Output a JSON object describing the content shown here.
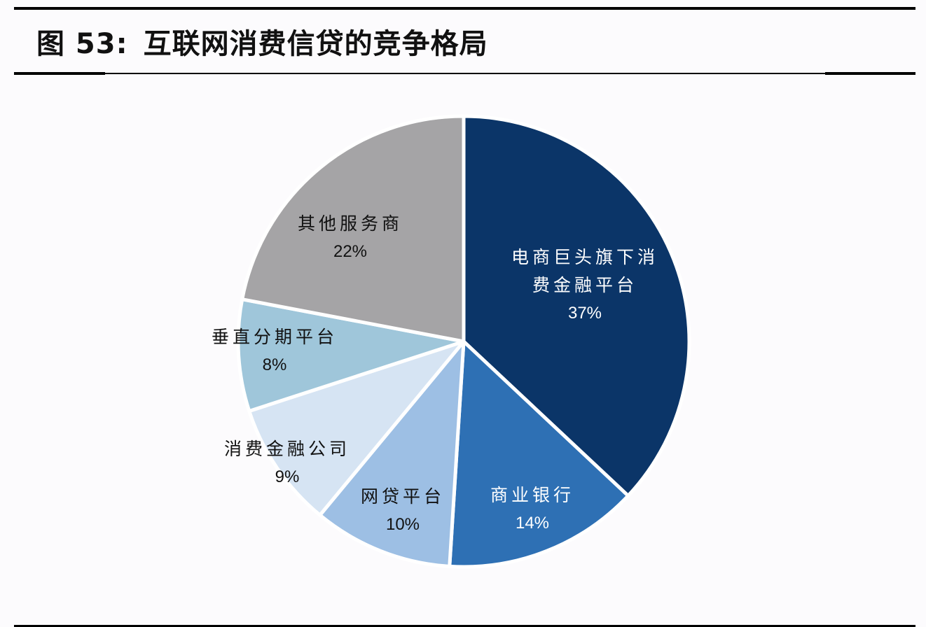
{
  "figure": {
    "number_label": "图 53:",
    "title": "互联网消费信贷的竞争格局"
  },
  "chart_data": {
    "type": "pie",
    "title": "互联网消费信贷的竞争格局",
    "start_angle": "12 o'clock, clockwise",
    "labels_inside_slices": true,
    "legend": "none",
    "slices": [
      {
        "label": "电商巨头旗下消费金融平台",
        "label_lines": [
          "电商巨头旗下消",
          "费金融平台"
        ],
        "value": 37,
        "value_label": "37%",
        "color": "#0b3568",
        "text_color": "#ffffff"
      },
      {
        "label": "商业银行",
        "label_lines": [
          "商业银行"
        ],
        "value": 14,
        "value_label": "14%",
        "color": "#2e70b4",
        "text_color": "#ffffff"
      },
      {
        "label": "网贷平台",
        "label_lines": [
          "网贷平台"
        ],
        "value": 10,
        "value_label": "10%",
        "color": "#9dbfe4",
        "text_color": "#111111"
      },
      {
        "label": "消费金融公司",
        "label_lines": [
          "消费金融公司"
        ],
        "value": 9,
        "value_label": "9%",
        "color": "#d6e4f3",
        "text_color": "#111111"
      },
      {
        "label": "垂直分期平台",
        "label_lines": [
          "垂直分期平台"
        ],
        "value": 8,
        "value_label": "8%",
        "color": "#9fc6da",
        "text_color": "#111111"
      },
      {
        "label": "其他服务商",
        "label_lines": [
          "其他服务商"
        ],
        "value": 22,
        "value_label": "22%",
        "color": "#a5a4a6",
        "text_color": "#111111"
      }
    ]
  }
}
